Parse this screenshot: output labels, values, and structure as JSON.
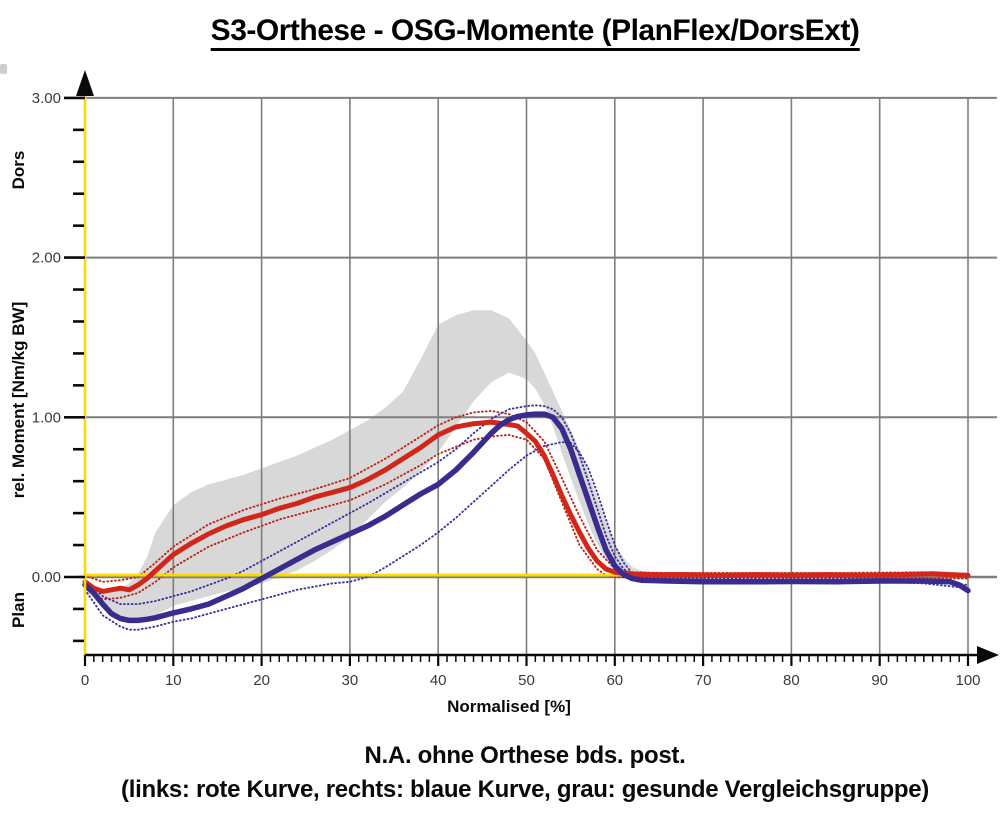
{
  "title": "S3-Orthese - OSG-Momente (PlanFlex/DorsExt)",
  "caption_line1": "N.A. ohne Orthese bds. post.",
  "caption_line2": "(links: rote Kurve, rechts: blaue Kurve, grau: gesunde Vergleichsgruppe)",
  "chart_data": {
    "type": "line",
    "title": "S3-Orthese - OSG-Momente (PlanFlex/DorsExt)",
    "xlabel": "Normalised [%]",
    "ylabel": "rel. Moment [Nm/kg BW]",
    "ylabel_top": "Dors",
    "ylabel_bottom": "Plan",
    "xlim": [
      0,
      100
    ],
    "ylim_visible": [
      -0.49,
      3.05
    ],
    "grid": true,
    "x_major_ticks": [
      0,
      10,
      20,
      30,
      40,
      50,
      60,
      70,
      80,
      90,
      100
    ],
    "x_minor_step": 1,
    "y_major_ticks": [
      {
        "value": 0,
        "label": "0.00"
      },
      {
        "value": 1,
        "label": "1.00"
      },
      {
        "value": 2,
        "label": "2.00"
      },
      {
        "value": 3,
        "label": "3.00"
      }
    ],
    "y_minor_step": 0.2,
    "colors": {
      "band": "#d8d8d8",
      "red": "#d3261a",
      "red_dotted": "#bf2318",
      "blue": "#382c8f",
      "blue_dotted": "#3d31a0",
      "yellow": "#ffd800",
      "grid": "#7e7e7e",
      "axis": "#0a0a0a",
      "tick_text": "#3a3a3a"
    },
    "band": {
      "name": "gesunde Vergleichsgruppe (graues Band)",
      "x": [
        0,
        1,
        2,
        3,
        4,
        5,
        6,
        7,
        8,
        10,
        12,
        14,
        16,
        18,
        20,
        22,
        24,
        26,
        28,
        30,
        32,
        34,
        36,
        38,
        40,
        42,
        44,
        46,
        48,
        50,
        51,
        52,
        53,
        54,
        55,
        56,
        57,
        58,
        59,
        60,
        61,
        62,
        63,
        64,
        66,
        70,
        80,
        90,
        95,
        98,
        100
      ],
      "upper": [
        -0.03,
        -0.06,
        -0.08,
        -0.09,
        -0.08,
        -0.04,
        0.02,
        0.12,
        0.28,
        0.45,
        0.53,
        0.58,
        0.61,
        0.64,
        0.68,
        0.72,
        0.76,
        0.81,
        0.86,
        0.92,
        0.98,
        1.06,
        1.16,
        1.36,
        1.58,
        1.64,
        1.67,
        1.67,
        1.62,
        1.48,
        1.4,
        1.28,
        1.16,
        1.04,
        0.92,
        0.8,
        0.65,
        0.5,
        0.34,
        0.2,
        0.12,
        0.06,
        0.04,
        0.03,
        0.025,
        0.02,
        0.02,
        0.02,
        0.025,
        0.03,
        0.02
      ],
      "lower": [
        -0.08,
        -0.13,
        -0.19,
        -0.24,
        -0.26,
        -0.27,
        -0.27,
        -0.26,
        -0.24,
        -0.18,
        -0.15,
        -0.12,
        -0.09,
        -0.07,
        -0.04,
        0.0,
        0.04,
        0.1,
        0.17,
        0.25,
        0.36,
        0.47,
        0.56,
        0.66,
        0.78,
        0.94,
        1.1,
        1.22,
        1.28,
        1.24,
        1.18,
        1.08,
        0.94,
        0.78,
        0.62,
        0.47,
        0.33,
        0.21,
        0.11,
        0.04,
        0.01,
        0.0,
        0.0,
        0.0,
        0.0,
        0.005,
        0.005,
        0.005,
        0.005,
        0.005,
        0.0
      ]
    },
    "dotted": [
      {
        "name": "rote Kurve Streuband oben",
        "color_key": "red_dotted",
        "x": [
          0,
          2,
          4,
          6,
          8,
          10,
          14,
          18,
          22,
          26,
          30,
          34,
          38,
          40,
          42,
          44,
          46,
          48,
          50,
          52,
          54,
          56,
          58,
          60,
          62,
          66,
          75,
          85,
          95,
          100
        ],
        "y": [
          0.01,
          -0.03,
          -0.02,
          0.0,
          0.09,
          0.19,
          0.33,
          0.42,
          0.49,
          0.55,
          0.62,
          0.74,
          0.88,
          0.95,
          1.0,
          1.03,
          1.04,
          1.02,
          0.97,
          0.85,
          0.62,
          0.38,
          0.17,
          0.05,
          0.03,
          0.025,
          0.025,
          0.025,
          0.03,
          0.02
        ]
      },
      {
        "name": "rote Kurve Streuband unten",
        "color_key": "red_dotted",
        "x": [
          0,
          2,
          4,
          6,
          8,
          10,
          14,
          18,
          22,
          26,
          30,
          34,
          38,
          40,
          44,
          46,
          48,
          50,
          52,
          54,
          56,
          58,
          59,
          60,
          62,
          70,
          80,
          90,
          100
        ],
        "y": [
          -0.07,
          -0.14,
          -0.13,
          -0.1,
          -0.03,
          0.06,
          0.19,
          0.28,
          0.36,
          0.42,
          0.48,
          0.58,
          0.7,
          0.77,
          0.86,
          0.88,
          0.89,
          0.86,
          0.74,
          0.47,
          0.2,
          0.05,
          0.01,
          0.0,
          -0.005,
          -0.005,
          -0.005,
          -0.005,
          -0.01
        ]
      },
      {
        "name": "blaue Kurve Streuband oben",
        "color_key": "blue_dotted",
        "x": [
          0,
          2,
          4,
          6,
          8,
          10,
          12,
          14,
          16,
          18,
          20,
          24,
          28,
          32,
          36,
          40,
          42,
          44,
          46,
          48,
          50,
          51,
          52,
          53,
          54,
          55,
          56,
          57,
          58,
          59,
          60,
          61,
          62,
          63,
          64,
          70,
          80,
          90,
          95,
          100
        ],
        "y": [
          -0.02,
          -0.12,
          -0.17,
          -0.17,
          -0.15,
          -0.12,
          -0.09,
          -0.05,
          -0.01,
          0.04,
          0.1,
          0.22,
          0.34,
          0.46,
          0.59,
          0.72,
          0.8,
          0.9,
          0.99,
          1.05,
          1.07,
          1.075,
          1.07,
          1.05,
          1.0,
          0.9,
          0.76,
          0.6,
          0.43,
          0.26,
          0.13,
          0.05,
          0.01,
          0.0,
          -0.01,
          -0.01,
          -0.015,
          -0.01,
          -0.02,
          -0.05
        ]
      },
      {
        "name": "blaue Kurve Streuband unten",
        "color_key": "blue_dotted",
        "x": [
          0,
          2,
          4,
          5,
          6,
          8,
          10,
          12,
          14,
          16,
          18,
          20,
          22,
          24,
          26,
          28,
          30,
          32,
          34,
          36,
          38,
          40,
          42,
          44,
          46,
          48,
          50,
          52,
          54,
          55,
          56,
          57,
          58,
          59,
          60,
          61,
          62,
          63,
          64,
          66,
          70,
          80,
          90,
          95,
          100
        ],
        "y": [
          -0.08,
          -0.24,
          -0.31,
          -0.33,
          -0.33,
          -0.31,
          -0.28,
          -0.26,
          -0.23,
          -0.2,
          -0.17,
          -0.14,
          -0.11,
          -0.08,
          -0.06,
          -0.04,
          -0.03,
          0.0,
          0.06,
          0.13,
          0.2,
          0.28,
          0.37,
          0.47,
          0.57,
          0.67,
          0.76,
          0.82,
          0.845,
          0.84,
          0.78,
          0.68,
          0.53,
          0.36,
          0.2,
          0.09,
          0.02,
          -0.01,
          -0.02,
          -0.03,
          -0.035,
          -0.03,
          -0.03,
          -0.04,
          -0.07
        ]
      }
    ],
    "series": [
      {
        "name": "Null-Linie (gelb)",
        "color_key": "yellow",
        "width": 2.8,
        "x": [
          0,
          100
        ],
        "y": [
          0.012,
          0.012
        ]
      },
      {
        "name": "rote Kurve (links, ohne Orthese)",
        "color_key": "red",
        "width": 5,
        "x": [
          0,
          1,
          2,
          3,
          4,
          5,
          6,
          7,
          8,
          10,
          12,
          14,
          16,
          18,
          20,
          22,
          24,
          26,
          28,
          30,
          32,
          34,
          36,
          38,
          40,
          42,
          44,
          46,
          48,
          49,
          50,
          51,
          52,
          53,
          54,
          55,
          56,
          57,
          58,
          59,
          60,
          61,
          62,
          64,
          68,
          72,
          76,
          80,
          84,
          88,
          92,
          96,
          98,
          100
        ],
        "y": [
          -0.03,
          -0.07,
          -0.09,
          -0.08,
          -0.07,
          -0.08,
          -0.05,
          -0.01,
          0.04,
          0.14,
          0.21,
          0.27,
          0.32,
          0.36,
          0.39,
          0.43,
          0.46,
          0.5,
          0.53,
          0.56,
          0.61,
          0.67,
          0.74,
          0.81,
          0.89,
          0.94,
          0.96,
          0.97,
          0.955,
          0.945,
          0.9,
          0.85,
          0.76,
          0.64,
          0.51,
          0.39,
          0.28,
          0.18,
          0.1,
          0.05,
          0.03,
          0.022,
          0.018,
          0.015,
          0.015,
          0.012,
          0.015,
          0.012,
          0.015,
          0.012,
          0.015,
          0.02,
          0.015,
          0.01
        ]
      },
      {
        "name": "blaue Kurve (rechts, ohne Orthese)",
        "color_key": "blue",
        "width": 5.5,
        "x": [
          0,
          1,
          2,
          3,
          4,
          5,
          6,
          7,
          8,
          10,
          12,
          14,
          16,
          18,
          20,
          22,
          24,
          26,
          28,
          30,
          32,
          34,
          36,
          38,
          40,
          42,
          44,
          46,
          47,
          48,
          49,
          50,
          51,
          52,
          53,
          54,
          55,
          56,
          57,
          58,
          59,
          60,
          61,
          62,
          63,
          64,
          66,
          70,
          75,
          80,
          85,
          90,
          95,
          98,
          99,
          100
        ],
        "y": [
          -0.05,
          -0.1,
          -0.17,
          -0.23,
          -0.26,
          -0.272,
          -0.272,
          -0.265,
          -0.255,
          -0.225,
          -0.2,
          -0.17,
          -0.12,
          -0.07,
          -0.01,
          0.05,
          0.11,
          0.17,
          0.22,
          0.27,
          0.32,
          0.38,
          0.45,
          0.52,
          0.58,
          0.67,
          0.78,
          0.9,
          0.95,
          0.985,
          1.005,
          1.015,
          1.02,
          1.02,
          1.0,
          0.93,
          0.8,
          0.64,
          0.48,
          0.32,
          0.17,
          0.07,
          0.015,
          -0.01,
          -0.02,
          -0.022,
          -0.025,
          -0.03,
          -0.03,
          -0.028,
          -0.03,
          -0.025,
          -0.025,
          -0.03,
          -0.05,
          -0.085
        ]
      }
    ]
  }
}
